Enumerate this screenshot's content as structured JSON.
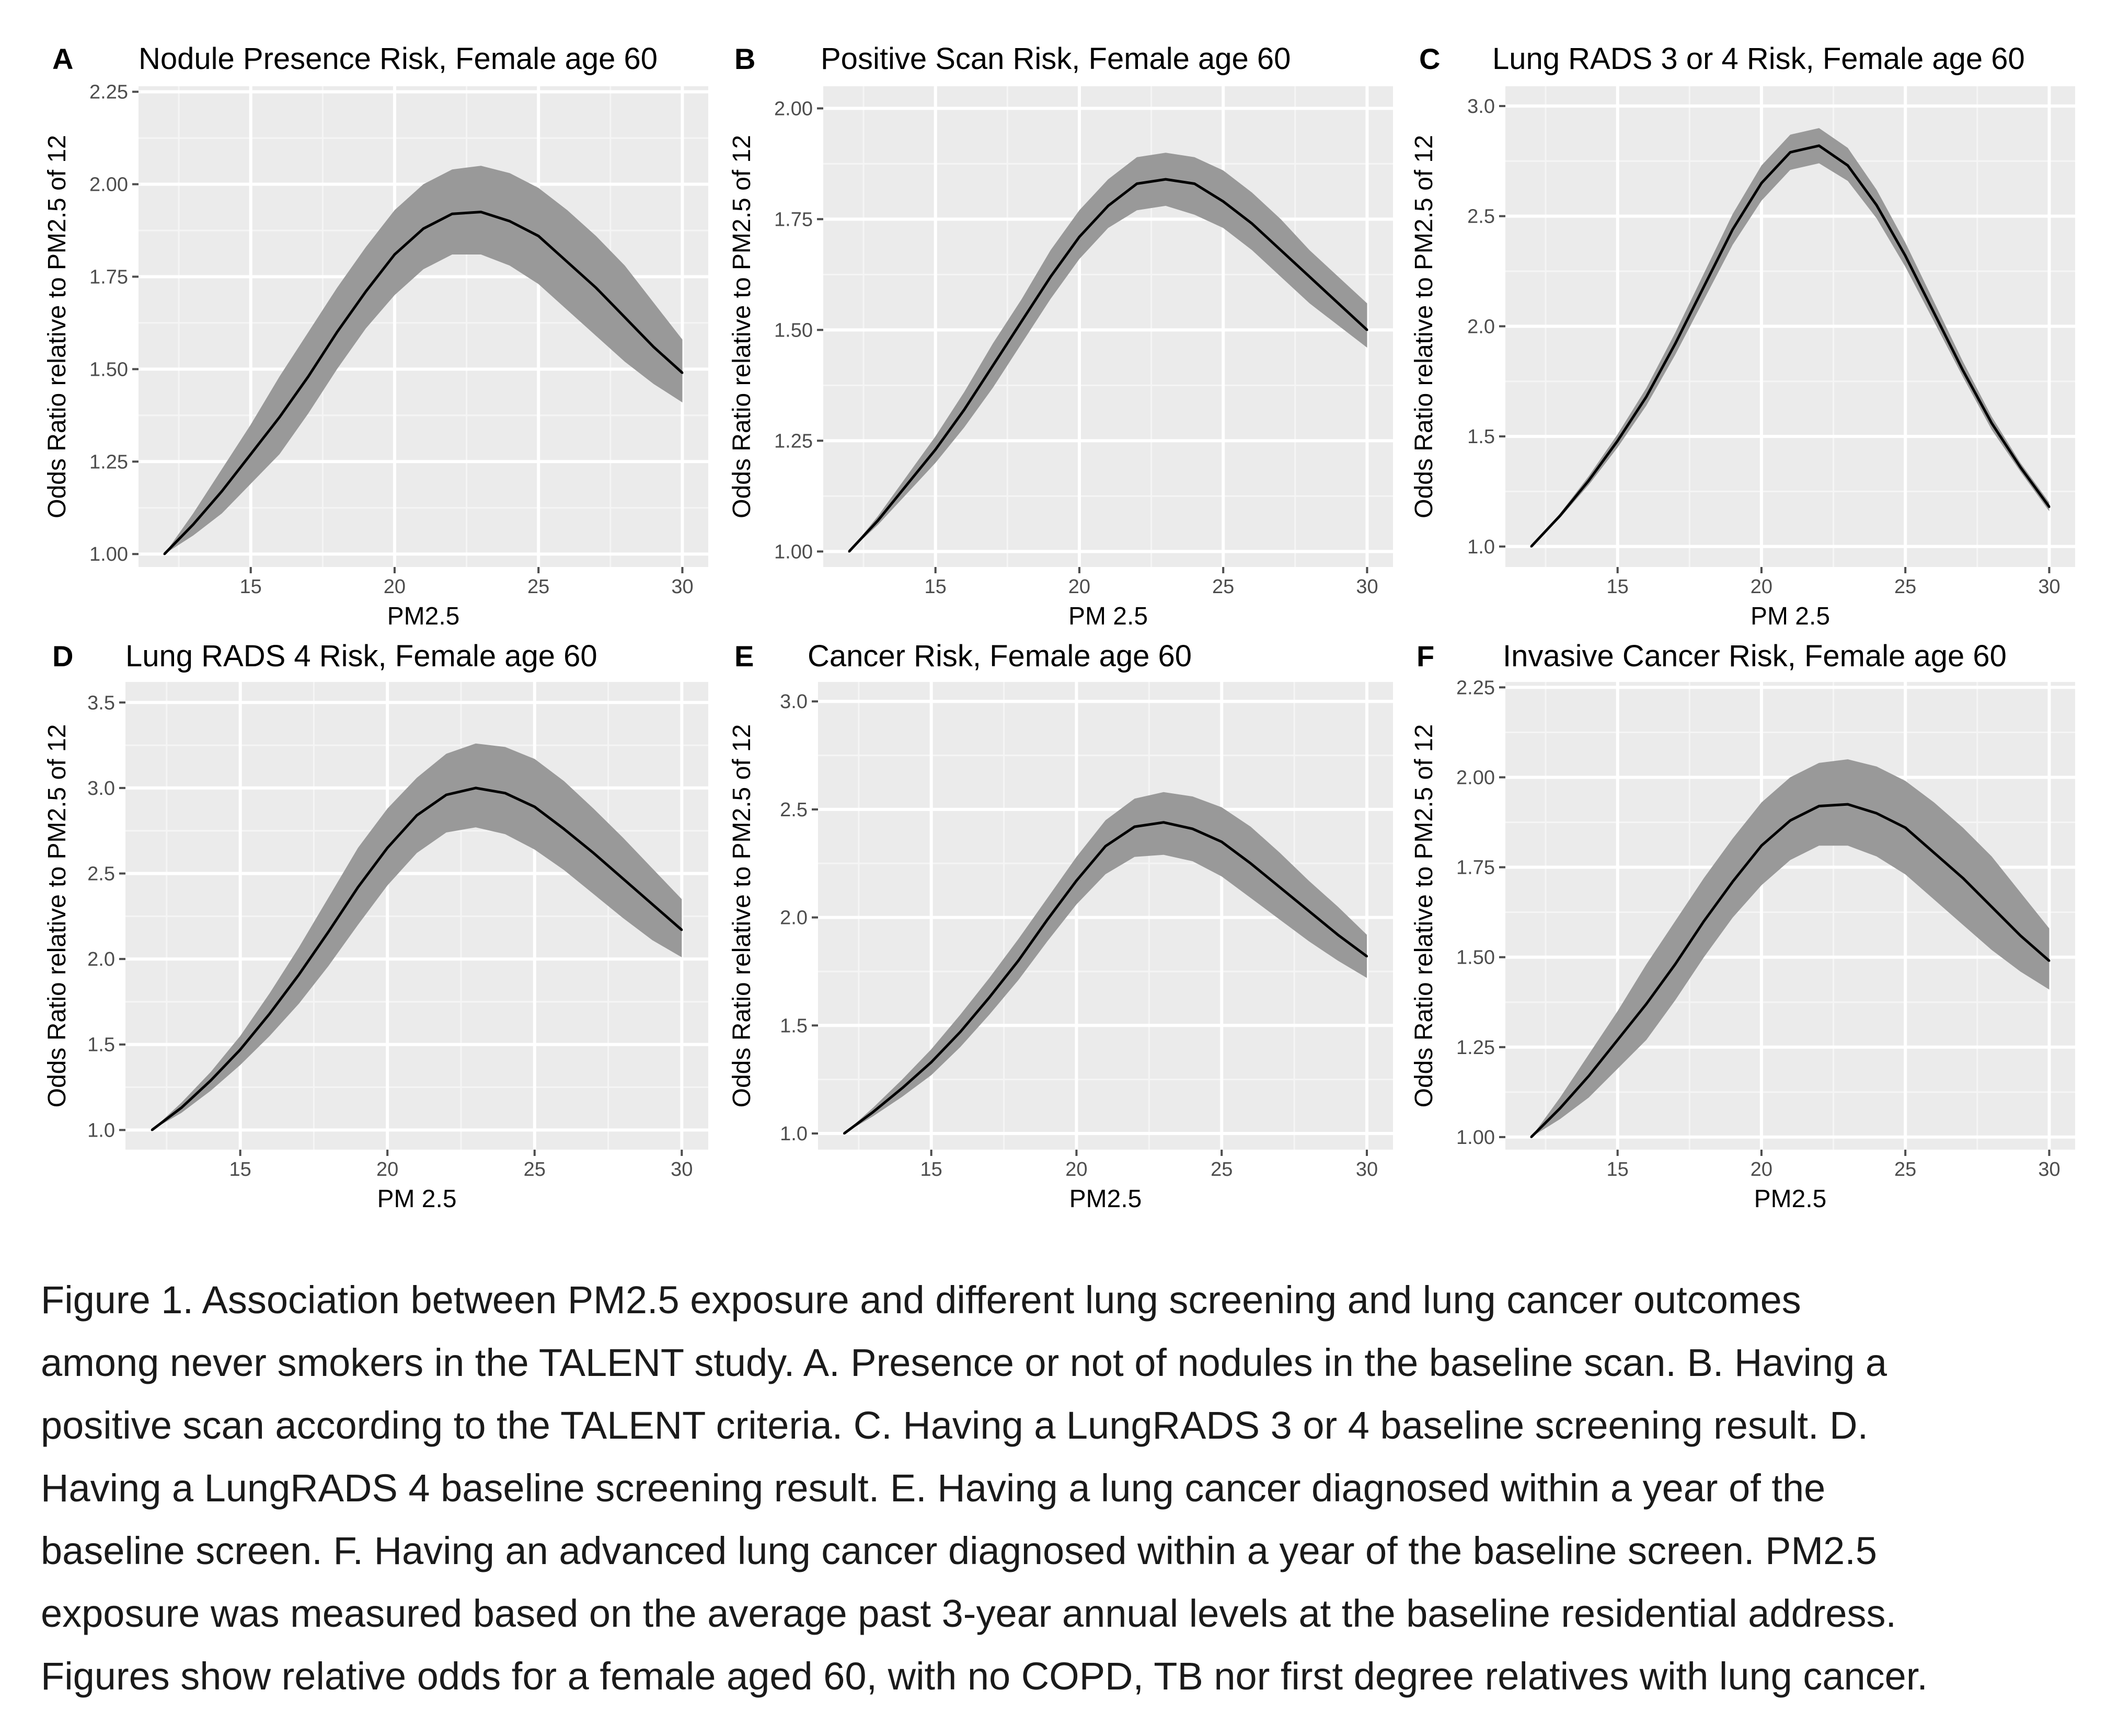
{
  "colors": {
    "panel_bg": "#ebebeb",
    "grid_major": "#ffffff",
    "grid_minor": "#f5f5f5",
    "ribbon": "#999999",
    "line": "#000000",
    "tick": "#4d4d4d"
  },
  "chart_data": [
    {
      "type": "line",
      "letter": "A",
      "title": "Nodule Presence Risk, Female age 60",
      "xlabel": "PM2.5",
      "ylabel": "Odds Ratio relative to PM2.5 of 12",
      "xlim": [
        11.1,
        30.9
      ],
      "ylim": [
        0.965,
        2.265
      ],
      "xticks": [
        15,
        20,
        25,
        30
      ],
      "xtick_labels": [
        "15",
        "20",
        "25",
        "30"
      ],
      "yticks": [
        1.0,
        1.25,
        1.5,
        1.75,
        2.0,
        2.25
      ],
      "ytick_labels": [
        "1.00",
        "1.25",
        "1.50",
        "1.75",
        "2.00",
        "2.25"
      ],
      "x": [
        12,
        13,
        14,
        15,
        16,
        17,
        18,
        19,
        20,
        21,
        22,
        23,
        24,
        25,
        26,
        27,
        28,
        29,
        30
      ],
      "y": [
        1.0,
        1.08,
        1.17,
        1.27,
        1.37,
        1.48,
        1.6,
        1.71,
        1.81,
        1.88,
        1.92,
        1.925,
        1.9,
        1.86,
        1.79,
        1.72,
        1.64,
        1.56,
        1.49
      ],
      "lower": [
        1.0,
        1.05,
        1.11,
        1.19,
        1.27,
        1.38,
        1.5,
        1.61,
        1.7,
        1.77,
        1.81,
        1.81,
        1.78,
        1.73,
        1.66,
        1.59,
        1.52,
        1.46,
        1.41
      ],
      "upper": [
        1.0,
        1.11,
        1.23,
        1.35,
        1.48,
        1.6,
        1.72,
        1.83,
        1.93,
        2.0,
        2.04,
        2.05,
        2.03,
        1.99,
        1.93,
        1.86,
        1.78,
        1.68,
        1.58
      ]
    },
    {
      "type": "line",
      "letter": "B",
      "title": "Positive Scan Risk, Female age 60",
      "xlabel": "PM 2.5",
      "ylabel": "Odds Ratio relative to PM2.5 of 12",
      "xlim": [
        11.1,
        30.9
      ],
      "ylim": [
        0.965,
        2.05
      ],
      "xticks": [
        15,
        20,
        25,
        30
      ],
      "xtick_labels": [
        "15",
        "20",
        "25",
        "30"
      ],
      "yticks": [
        1.0,
        1.25,
        1.5,
        1.75,
        2.0
      ],
      "ytick_labels": [
        "1.00",
        "1.25",
        "1.50",
        "1.75",
        "2.00"
      ],
      "x": [
        12,
        13,
        14,
        15,
        16,
        17,
        18,
        19,
        20,
        21,
        22,
        23,
        24,
        25,
        26,
        27,
        28,
        29,
        30
      ],
      "y": [
        1.0,
        1.07,
        1.15,
        1.23,
        1.32,
        1.42,
        1.52,
        1.62,
        1.71,
        1.78,
        1.83,
        1.84,
        1.83,
        1.79,
        1.74,
        1.68,
        1.62,
        1.56,
        1.5
      ],
      "lower": [
        1.0,
        1.06,
        1.13,
        1.2,
        1.28,
        1.37,
        1.47,
        1.57,
        1.66,
        1.73,
        1.77,
        1.78,
        1.76,
        1.73,
        1.68,
        1.62,
        1.56,
        1.51,
        1.46
      ],
      "upper": [
        1.0,
        1.08,
        1.17,
        1.26,
        1.36,
        1.47,
        1.57,
        1.68,
        1.77,
        1.84,
        1.89,
        1.9,
        1.89,
        1.86,
        1.81,
        1.75,
        1.68,
        1.62,
        1.56
      ]
    },
    {
      "type": "line",
      "letter": "C",
      "title": "Lung RADS 3 or 4 Risk, Female age 60",
      "xlabel": "PM 2.5",
      "ylabel": "Odds Ratio relative to PM2.5 of 12",
      "xlim": [
        11.1,
        30.9
      ],
      "ylim": [
        0.907,
        3.09
      ],
      "xticks": [
        15,
        20,
        25,
        30
      ],
      "xtick_labels": [
        "15",
        "20",
        "25",
        "30"
      ],
      "yticks": [
        1.0,
        1.5,
        2.0,
        2.5,
        3.0
      ],
      "ytick_labels": [
        "1.0",
        "1.5",
        "2.0",
        "2.5",
        "3.0"
      ],
      "x": [
        12,
        13,
        14,
        15,
        16,
        17,
        18,
        19,
        20,
        21,
        22,
        23,
        24,
        25,
        26,
        27,
        28,
        29,
        30
      ],
      "y": [
        1.0,
        1.14,
        1.3,
        1.48,
        1.68,
        1.92,
        2.18,
        2.44,
        2.65,
        2.79,
        2.82,
        2.73,
        2.55,
        2.32,
        2.06,
        1.8,
        1.56,
        1.36,
        1.18
      ],
      "lower": [
        1.0,
        1.13,
        1.28,
        1.45,
        1.64,
        1.87,
        2.12,
        2.37,
        2.57,
        2.71,
        2.74,
        2.66,
        2.49,
        2.27,
        2.02,
        1.77,
        1.53,
        1.34,
        1.16
      ],
      "upper": [
        1.0,
        1.15,
        1.32,
        1.51,
        1.72,
        1.97,
        2.24,
        2.51,
        2.73,
        2.87,
        2.9,
        2.81,
        2.62,
        2.38,
        2.11,
        1.84,
        1.59,
        1.38,
        1.2
      ]
    },
    {
      "type": "line",
      "letter": "D",
      "title": "Lung RADS 4 Risk, Female age 60",
      "xlabel": "PM 2.5",
      "ylabel": "Odds Ratio relative to PM2.5 of 12",
      "xlim": [
        11.1,
        30.9
      ],
      "ylim": [
        0.885,
        3.62
      ],
      "xticks": [
        15,
        20,
        25,
        30
      ],
      "xtick_labels": [
        "15",
        "20",
        "25",
        "30"
      ],
      "yticks": [
        1.0,
        1.5,
        2.0,
        2.5,
        3.0,
        3.5
      ],
      "ytick_labels": [
        "1.0",
        "1.5",
        "2.0",
        "2.5",
        "3.0",
        "3.5"
      ],
      "x": [
        12,
        13,
        14,
        15,
        16,
        17,
        18,
        19,
        20,
        21,
        22,
        23,
        24,
        25,
        26,
        27,
        28,
        29,
        30
      ],
      "y": [
        1.0,
        1.13,
        1.29,
        1.47,
        1.68,
        1.91,
        2.16,
        2.42,
        2.65,
        2.84,
        2.96,
        3.0,
        2.97,
        2.89,
        2.76,
        2.62,
        2.47,
        2.32,
        2.17
      ],
      "lower": [
        1.0,
        1.1,
        1.23,
        1.38,
        1.55,
        1.74,
        1.96,
        2.2,
        2.43,
        2.62,
        2.74,
        2.77,
        2.73,
        2.64,
        2.52,
        2.38,
        2.24,
        2.11,
        2.01
      ],
      "upper": [
        1.0,
        1.16,
        1.34,
        1.55,
        1.8,
        2.07,
        2.36,
        2.65,
        2.88,
        3.06,
        3.2,
        3.26,
        3.24,
        3.17,
        3.04,
        2.88,
        2.71,
        2.53,
        2.35
      ]
    },
    {
      "type": "line",
      "letter": "E",
      "title": "Cancer Risk, Female age 60",
      "xlabel": "PM2.5",
      "ylabel": "Odds Ratio relative to PM2.5 of 12",
      "xlim": [
        11.1,
        30.9
      ],
      "ylim": [
        0.925,
        3.09
      ],
      "xticks": [
        15,
        20,
        25,
        30
      ],
      "xtick_labels": [
        "15",
        "20",
        "25",
        "30"
      ],
      "yticks": [
        1.0,
        1.5,
        2.0,
        2.5,
        3.0
      ],
      "ytick_labels": [
        "1.0",
        "1.5",
        "2.0",
        "2.5",
        "3.0"
      ],
      "x": [
        12,
        13,
        14,
        15,
        16,
        17,
        18,
        19,
        20,
        21,
        22,
        23,
        24,
        25,
        26,
        27,
        28,
        29,
        30
      ],
      "y": [
        1.0,
        1.1,
        1.21,
        1.33,
        1.47,
        1.63,
        1.8,
        1.99,
        2.17,
        2.33,
        2.42,
        2.44,
        2.41,
        2.35,
        2.25,
        2.14,
        2.03,
        1.92,
        1.82
      ],
      "lower": [
        1.0,
        1.08,
        1.17,
        1.27,
        1.4,
        1.55,
        1.71,
        1.89,
        2.06,
        2.2,
        2.28,
        2.29,
        2.26,
        2.19,
        2.09,
        1.99,
        1.89,
        1.8,
        1.72
      ],
      "upper": [
        1.0,
        1.12,
        1.25,
        1.39,
        1.55,
        1.72,
        1.9,
        2.09,
        2.28,
        2.45,
        2.55,
        2.58,
        2.56,
        2.51,
        2.42,
        2.3,
        2.17,
        2.05,
        1.92
      ]
    },
    {
      "type": "line",
      "letter": "F",
      "title": "Invasive Cancer Risk, Female age 60",
      "xlabel": "PM2.5",
      "ylabel": "Odds Ratio relative to PM2.5 of 12",
      "xlim": [
        11.1,
        30.9
      ],
      "ylim": [
        0.965,
        2.265
      ],
      "xticks": [
        15,
        20,
        25,
        30
      ],
      "xtick_labels": [
        "15",
        "20",
        "25",
        "30"
      ],
      "yticks": [
        1.0,
        1.25,
        1.5,
        1.75,
        2.0,
        2.25
      ],
      "ytick_labels": [
        "1.00",
        "1.25",
        "1.50",
        "1.75",
        "2.00",
        "2.25"
      ],
      "x": [
        12,
        13,
        14,
        15,
        16,
        17,
        18,
        19,
        20,
        21,
        22,
        23,
        24,
        25,
        26,
        27,
        28,
        29,
        30
      ],
      "y": [
        1.0,
        1.08,
        1.17,
        1.27,
        1.37,
        1.48,
        1.6,
        1.71,
        1.81,
        1.88,
        1.92,
        1.925,
        1.9,
        1.86,
        1.79,
        1.72,
        1.64,
        1.56,
        1.49
      ],
      "lower": [
        1.0,
        1.05,
        1.11,
        1.19,
        1.27,
        1.38,
        1.5,
        1.61,
        1.7,
        1.77,
        1.81,
        1.81,
        1.78,
        1.73,
        1.66,
        1.59,
        1.52,
        1.46,
        1.41
      ],
      "upper": [
        1.0,
        1.11,
        1.23,
        1.35,
        1.48,
        1.6,
        1.72,
        1.83,
        1.93,
        2.0,
        2.04,
        2.05,
        2.03,
        1.99,
        1.93,
        1.86,
        1.78,
        1.68,
        1.58
      ]
    }
  ],
  "caption": {
    "lines": [
      "Figure 1. Association between PM2.5 exposure and different lung screening and lung cancer outcomes",
      "among never smokers in the TALENT study. A. Presence or not of nodules in the baseline scan. B. Having a",
      "positive scan according to the TALENT criteria. C. Having a LungRADS 3 or 4 baseline screening result. D.",
      "Having a LungRADS 4 baseline screening result. E. Having a lung cancer diagnosed within a year of the",
      "baseline screen. F. Having an advanced lung cancer diagnosed within a year of the baseline screen. PM2.5",
      "exposure was measured based on the average past 3-year annual levels at the baseline residential address.",
      "Figures show relative odds for a female aged 60, with no COPD, TB nor first degree relatives with lung cancer."
    ]
  }
}
